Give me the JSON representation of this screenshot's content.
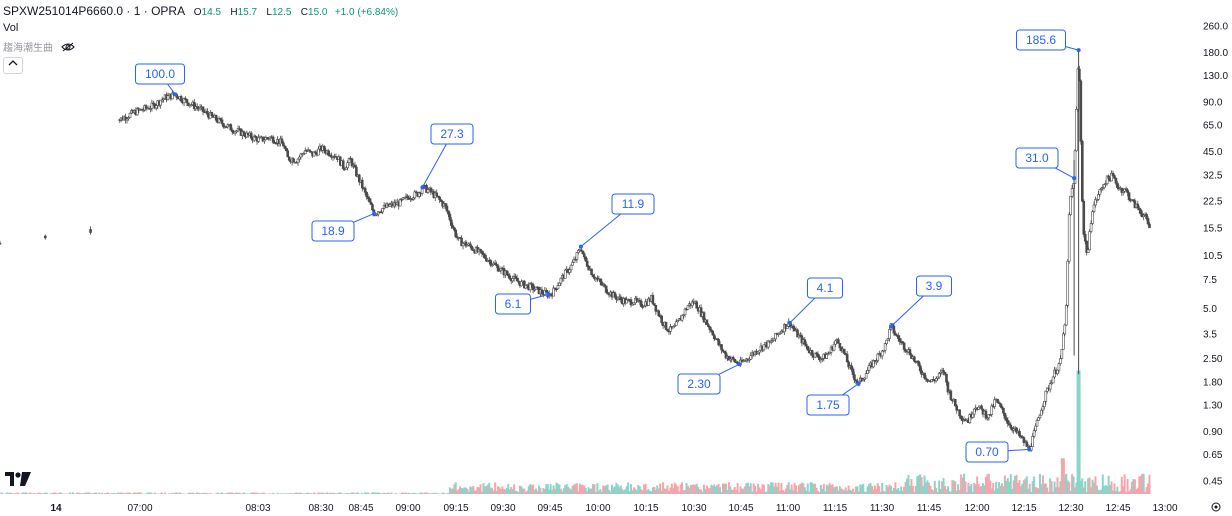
{
  "header": {
    "symbol": "SPXW251014P6660.0 · 1 · OPRA",
    "open_label": "O",
    "open": "14.5",
    "high_label": "H",
    "high": "15.7",
    "low_label": "L",
    "low": "12.5",
    "close_label": "C",
    "close": "15.0",
    "change": "+1.0 (+6.84%)"
  },
  "vol_label": "Vol",
  "indicator_label": "趨海潮生曲",
  "collapse_icon": "chevron-up-icon",
  "colors": {
    "up": "#089981",
    "down": "#f23645",
    "candle": "#4a4a4a",
    "marker": "#2962ff",
    "vol_up": "#8ad4c9",
    "vol_down": "#f5a6ad"
  },
  "chart_data": {
    "type": "candlestick",
    "y_scale": "log",
    "y_ticks": [
      "260.0",
      "180.0",
      "130.0",
      "90.0",
      "65.0",
      "45.0",
      "32.5",
      "22.5",
      "15.5",
      "10.5",
      "7.5",
      "5.0",
      "3.5",
      "2.50",
      "1.80",
      "1.30",
      "0.90",
      "0.65",
      "0.45"
    ],
    "x_ticks": [
      "14",
      "07:00",
      "08:03",
      "08:30",
      "08:45",
      "09:00",
      "09:15",
      "09:30",
      "09:45",
      "10:00",
      "10:15",
      "10:30",
      "10:45",
      "11:00",
      "11:15",
      "11:30",
      "11:45",
      "12:00",
      "12:15",
      "12:30",
      "12:45",
      "13:00"
    ],
    "price_path": [
      [
        0.0,
        12.5
      ],
      [
        2.0,
        13.8
      ],
      [
        4.0,
        14.6
      ],
      [
        5.3,
        70
      ],
      [
        6.0,
        78
      ],
      [
        6.8,
        85
      ],
      [
        7.3,
        95
      ],
      [
        7.8,
        100.0
      ],
      [
        8.2,
        92
      ],
      [
        8.8,
        83
      ],
      [
        9.3,
        75
      ],
      [
        9.8,
        68
      ],
      [
        10.3,
        62
      ],
      [
        10.8,
        58
      ],
      [
        11.2,
        55
      ],
      [
        11.6,
        53
      ],
      [
        12.0,
        55
      ],
      [
        12.4,
        52
      ],
      [
        12.6,
        50
      ],
      [
        12.8,
        41
      ],
      [
        13.2,
        40
      ],
      [
        13.6,
        46
      ],
      [
        13.9,
        43
      ],
      [
        14.3,
        47
      ],
      [
        14.7,
        44
      ],
      [
        15.0,
        42
      ],
      [
        15.3,
        36
      ],
      [
        15.6,
        40
      ],
      [
        15.9,
        32
      ],
      [
        16.1,
        28
      ],
      [
        16.3,
        24
      ],
      [
        16.5,
        21
      ],
      [
        16.65,
        18.9
      ],
      [
        16.9,
        20
      ],
      [
        17.3,
        21
      ],
      [
        17.8,
        22
      ],
      [
        18.2,
        24
      ],
      [
        18.6,
        25
      ],
      [
        18.8,
        27.3
      ],
      [
        19.1,
        26
      ],
      [
        19.4,
        24
      ],
      [
        19.8,
        21
      ],
      [
        20.0,
        18
      ],
      [
        20.2,
        15
      ],
      [
        20.4,
        13
      ],
      [
        20.6,
        12.5
      ],
      [
        20.9,
        12
      ],
      [
        21.3,
        11
      ],
      [
        21.7,
        10
      ],
      [
        22.1,
        9
      ],
      [
        22.5,
        8.2
      ],
      [
        22.9,
        7.5
      ],
      [
        23.3,
        7.0
      ],
      [
        23.7,
        6.7
      ],
      [
        24.1,
        6.3
      ],
      [
        24.4,
        6.1
      ],
      [
        24.6,
        6.3
      ],
      [
        24.8,
        7
      ],
      [
        25.1,
        8
      ],
      [
        25.4,
        9
      ],
      [
        25.6,
        10
      ],
      [
        25.85,
        11.9
      ],
      [
        26.0,
        10
      ],
      [
        26.2,
        9
      ],
      [
        26.4,
        8
      ],
      [
        26.7,
        7.2
      ],
      [
        27.0,
        6.5
      ],
      [
        27.3,
        6.0
      ],
      [
        27.6,
        5.7
      ],
      [
        27.9,
        5.5
      ],
      [
        28.2,
        5.6
      ],
      [
        28.5,
        5.3
      ],
      [
        28.8,
        5.5
      ],
      [
        29.0,
        5.8
      ],
      [
        29.2,
        5.0
      ],
      [
        29.4,
        4.4
      ],
      [
        29.6,
        3.9
      ],
      [
        29.8,
        3.7
      ],
      [
        30.0,
        3.8
      ],
      [
        30.3,
        4.4
      ],
      [
        30.6,
        5.2
      ],
      [
        30.9,
        5.5
      ],
      [
        31.1,
        5.0
      ],
      [
        31.4,
        4.2
      ],
      [
        31.7,
        3.6
      ],
      [
        32.0,
        3.0
      ],
      [
        32.3,
        2.6
      ],
      [
        32.6,
        2.45
      ],
      [
        32.9,
        2.3
      ],
      [
        33.1,
        2.4
      ],
      [
        33.4,
        2.6
      ],
      [
        33.7,
        2.8
      ],
      [
        34.0,
        3.0
      ],
      [
        34.3,
        3.1
      ],
      [
        34.6,
        3.5
      ],
      [
        34.9,
        3.9
      ],
      [
        35.15,
        4.1
      ],
      [
        35.4,
        3.6
      ],
      [
        35.7,
        3.2
      ],
      [
        36.0,
        2.8
      ],
      [
        36.3,
        2.6
      ],
      [
        36.6,
        2.5
      ],
      [
        36.9,
        2.7
      ],
      [
        37.2,
        3.2
      ],
      [
        37.4,
        3.0
      ],
      [
        37.6,
        2.6
      ],
      [
        37.8,
        2.2
      ],
      [
        38.0,
        1.95
      ],
      [
        38.2,
        1.75
      ],
      [
        38.5,
        2.0
      ],
      [
        38.8,
        2.3
      ],
      [
        39.1,
        2.6
      ],
      [
        39.4,
        3.0
      ],
      [
        39.65,
        3.9
      ],
      [
        39.9,
        3.4
      ],
      [
        40.2,
        3.0
      ],
      [
        40.5,
        2.7
      ],
      [
        40.8,
        2.3
      ],
      [
        41.1,
        2.0
      ],
      [
        41.4,
        1.8
      ],
      [
        41.7,
        1.9
      ],
      [
        42.0,
        2.1
      ],
      [
        42.2,
        1.6
      ],
      [
        42.5,
        1.3
      ],
      [
        42.8,
        1.1
      ],
      [
        43.1,
        1.05
      ],
      [
        43.4,
        1.3
      ],
      [
        43.7,
        1.2
      ],
      [
        44.0,
        1.1
      ],
      [
        44.3,
        1.4
      ],
      [
        44.6,
        1.2
      ],
      [
        44.9,
        1.0
      ],
      [
        45.2,
        0.9
      ],
      [
        45.5,
        0.8
      ],
      [
        45.8,
        0.7
      ],
      [
        46.0,
        0.85
      ],
      [
        46.3,
        1.2
      ],
      [
        46.6,
        1.6
      ],
      [
        46.9,
        2.0
      ],
      [
        47.2,
        2.4
      ],
      [
        47.45,
        5.0
      ],
      [
        47.6,
        22
      ],
      [
        47.8,
        31.0
      ],
      [
        48.0,
        185.6
      ],
      [
        48.2,
        15
      ],
      [
        48.4,
        10.5
      ],
      [
        48.6,
        20
      ],
      [
        48.9,
        25
      ],
      [
        49.2,
        30
      ],
      [
        49.5,
        32
      ],
      [
        49.8,
        27
      ],
      [
        50.1,
        26
      ],
      [
        50.4,
        22
      ],
      [
        50.7,
        20
      ],
      [
        50.95,
        18
      ],
      [
        51.2,
        15.0
      ]
    ],
    "annotations": [
      {
        "label": "100.0",
        "x": 7.8,
        "y": 100.0
      },
      {
        "label": "18.9",
        "x": 16.65,
        "y": 18.9
      },
      {
        "label": "27.3",
        "x": 18.8,
        "y": 27.3
      },
      {
        "label": "6.1",
        "x": 24.4,
        "y": 6.1
      },
      {
        "label": "11.9",
        "x": 25.85,
        "y": 11.9
      },
      {
        "label": "2.30",
        "x": 32.9,
        "y": 2.3
      },
      {
        "label": "4.1",
        "x": 35.15,
        "y": 4.1
      },
      {
        "label": "1.75",
        "x": 38.2,
        "y": 1.75
      },
      {
        "label": "3.9",
        "x": 39.65,
        "y": 3.9
      },
      {
        "label": "0.70",
        "x": 45.8,
        "y": 0.7
      },
      {
        "label": "31.0",
        "x": 47.8,
        "y": 31.0
      },
      {
        "label": "185.6",
        "x": 48.0,
        "y": 185.6
      }
    ],
    "volume": {
      "spike_x": 48.0,
      "spike_height": 0.95,
      "secondary_x": 47.3,
      "secondary_height": 0.55
    }
  }
}
